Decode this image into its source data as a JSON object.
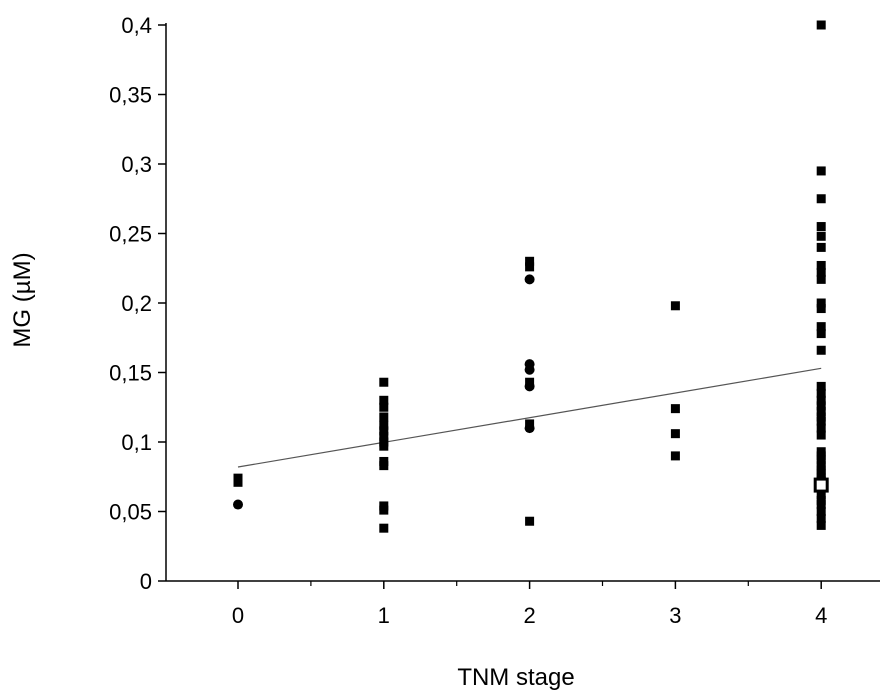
{
  "chart_data": {
    "type": "scatter",
    "xlabel": "TNM stage",
    "ylabel": "MG (µM)",
    "xlim": [
      -0.5,
      4.45
    ],
    "ylim": [
      0,
      0.4
    ],
    "x_ticks": [
      0,
      1,
      2,
      3,
      4
    ],
    "x_tick_labels": [
      "0",
      "1",
      "2",
      "3",
      "4"
    ],
    "y_ticks": [
      0,
      0.05,
      0.1,
      0.15,
      0.2,
      0.25,
      0.3,
      0.35,
      0.4
    ],
    "y_tick_labels": [
      "0",
      "0,05",
      "0,1",
      "0,15",
      "0,2",
      "0,25",
      "0,3",
      "0,35",
      "0,4"
    ],
    "grid": false,
    "series": [
      {
        "marker": "square",
        "points": [
          [
            0,
            0.074
          ],
          [
            0,
            0.071
          ],
          [
            1,
            0.143
          ],
          [
            1,
            0.13
          ],
          [
            1,
            0.125
          ],
          [
            1,
            0.118
          ],
          [
            1,
            0.112
          ],
          [
            1,
            0.108
          ],
          [
            1,
            0.104
          ],
          [
            1,
            0.1
          ],
          [
            1,
            0.097
          ],
          [
            1,
            0.086
          ],
          [
            1,
            0.083
          ],
          [
            1,
            0.054
          ],
          [
            1,
            0.051
          ],
          [
            1,
            0.038
          ],
          [
            2,
            0.23
          ],
          [
            2,
            0.226
          ],
          [
            2,
            0.143
          ],
          [
            2,
            0.113
          ],
          [
            2,
            0.043
          ],
          [
            3,
            0.198
          ],
          [
            3,
            0.124
          ],
          [
            3,
            0.106
          ],
          [
            3,
            0.09
          ],
          [
            4,
            0.4
          ],
          [
            4,
            0.295
          ],
          [
            4,
            0.275
          ],
          [
            4,
            0.255
          ],
          [
            4,
            0.248
          ],
          [
            4,
            0.24
          ],
          [
            4,
            0.227
          ],
          [
            4,
            0.222
          ],
          [
            4,
            0.217
          ],
          [
            4,
            0.2
          ],
          [
            4,
            0.196
          ],
          [
            4,
            0.183
          ],
          [
            4,
            0.178
          ],
          [
            4,
            0.166
          ],
          [
            4,
            0.14
          ],
          [
            4,
            0.135
          ],
          [
            4,
            0.13
          ],
          [
            4,
            0.126
          ],
          [
            4,
            0.122
          ],
          [
            4,
            0.118
          ],
          [
            4,
            0.115
          ],
          [
            4,
            0.11
          ],
          [
            4,
            0.105
          ],
          [
            4,
            0.093
          ],
          [
            4,
            0.09
          ],
          [
            4,
            0.087
          ],
          [
            4,
            0.083
          ],
          [
            4,
            0.08
          ],
          [
            4,
            0.077
          ],
          [
            4,
            0.074
          ],
          [
            4,
            0.072
          ],
          [
            4,
            0.069
          ],
          [
            4,
            0.062
          ],
          [
            4,
            0.058
          ],
          [
            4,
            0.055
          ],
          [
            4,
            0.05
          ],
          [
            4,
            0.045
          ],
          [
            4,
            0.04
          ]
        ]
      },
      {
        "marker": "circle",
        "points": [
          [
            0,
            0.055
          ],
          [
            2,
            0.217
          ],
          [
            2,
            0.156
          ],
          [
            2,
            0.152
          ],
          [
            2,
            0.14
          ],
          [
            2,
            0.11
          ]
        ]
      }
    ],
    "open_markers": [
      [
        4,
        0.069
      ]
    ],
    "trendline": {
      "x": [
        0,
        4
      ],
      "y": [
        0.082,
        0.153
      ]
    }
  }
}
